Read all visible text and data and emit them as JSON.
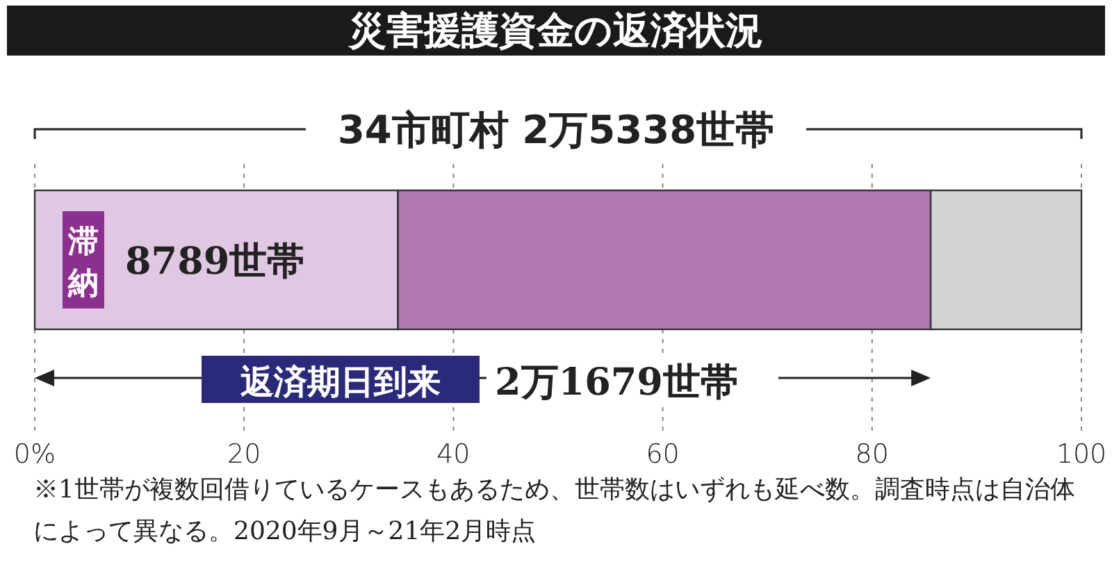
{
  "chart_data": {
    "type": "bar",
    "orientation": "horizontal",
    "stacked": true,
    "title": "災害援護資金の返済状況",
    "categories": [
      null
    ],
    "series": [
      {
        "name": "滞納",
        "color": "#e0c8e2",
        "values": [
          34.7
        ]
      },
      {
        "color": "#b077b2",
        "values": [
          50.9
        ]
      },
      {
        "color": "#d2d3d5",
        "values": [
          14.4
        ]
      }
    ],
    "xlim": [
      0,
      100
    ],
    "xticks": [
      {
        "value": 0,
        "label": "0%"
      },
      20,
      40,
      60,
      80,
      100
    ],
    "grid": "x",
    "annotations": [
      "8789世帯",
      "34市町村 2万5338世帯",
      "返済期日到来",
      "2万1679世帯",
      "※1世帯が複数回借りているケースもあるため、世帯数はいずれも延べ数。調査時点は自治体によって異なる。2020年9月～21年2月時点"
    ]
  }
}
